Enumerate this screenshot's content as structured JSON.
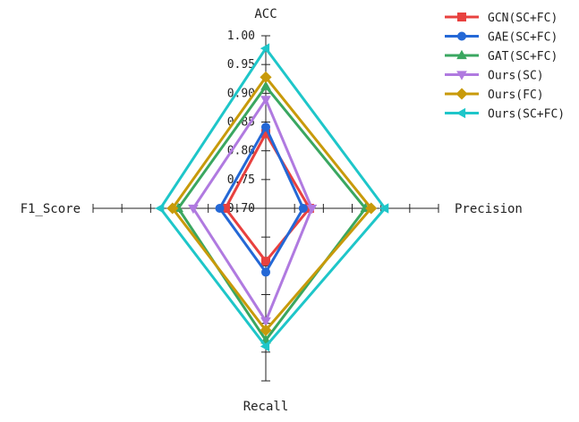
{
  "chart_data": {
    "type": "radar",
    "axes": [
      "ACC",
      "Precision",
      "Recall",
      "F1_Score"
    ],
    "range": [
      0.7,
      1.0
    ],
    "tick_values": [
      0.7,
      0.75,
      0.8,
      0.85,
      0.9,
      0.95,
      1.0
    ],
    "tick_labels": [
      "0.70",
      "0.75",
      "0.80",
      "0.85",
      "0.90",
      "0.95",
      "1.00"
    ],
    "legend_position": "top-right",
    "series": [
      {
        "name": "GCN(SC+FC)",
        "color": "#e8413f",
        "marker": "square",
        "values": [
          0.83,
          0.776,
          0.792,
          0.77
        ]
      },
      {
        "name": "GAE(SC+FC)",
        "color": "#2468d6",
        "marker": "circle",
        "values": [
          0.841,
          0.765,
          0.811,
          0.78
        ]
      },
      {
        "name": "GAT(SC+FC)",
        "color": "#3aa760",
        "marker": "triangle-up",
        "values": [
          0.912,
          0.873,
          0.929,
          0.852
        ]
      },
      {
        "name": "Ours(SC)",
        "color": "#b07ae0",
        "marker": "triangle-down",
        "values": [
          0.889,
          0.78,
          0.896,
          0.826
        ]
      },
      {
        "name": "Ours(FC)",
        "color": "#c89a0a",
        "marker": "diamond",
        "values": [
          0.928,
          0.883,
          0.912,
          0.862
        ]
      },
      {
        "name": "Ours(SC+FC)",
        "color": "#1ec6c9",
        "marker": "triangle-left",
        "values": [
          0.978,
          0.907,
          0.94,
          0.883
        ]
      }
    ]
  }
}
